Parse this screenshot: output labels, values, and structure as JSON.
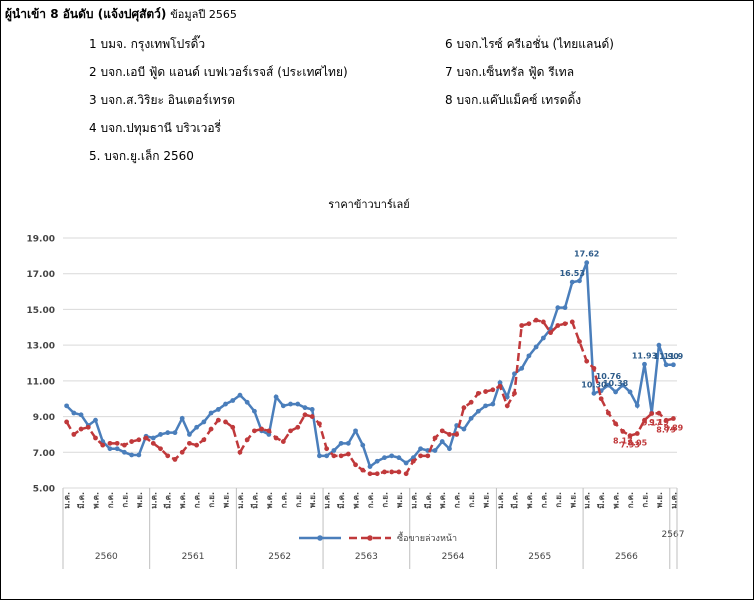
{
  "header": {
    "title": "ผู้นำเข้า 8 อันดับ (แจ้งปศุสัตว์)",
    "note": "ข้อมูลปี 2565"
  },
  "importers": [
    "1 บมจ. กรุงเทพโปรดิ๊ว",
    "2 บจก.เอบี ฟู้ด แอนด์ เบฟเวอร์เรจส์ (ประเทศไทย)",
    "3 บจก.ส.วิริยะ อินเตอร์เทรด",
    "4 บจก.ปทุมธานี บริวเวอรี่",
    "5. บจก.ยู.เล็ก 2560",
    "6 บจก.ไรซ์ ครีเอชั่น (ไทยแลนด์)",
    "7 บจก.เซ็นทรัล ฟู้ด รีเทล",
    "8 บจก.แค๊ปแม็คซ์ เทรดดิ้ง"
  ],
  "chart_data": {
    "type": "line",
    "title": "ราคาข้าวบาร์เลย์",
    "categories": [
      "ม.ค.",
      null,
      "มี.ค.",
      null,
      "พ.ค.",
      null,
      "ก.ค.",
      null,
      "ก.ย.",
      null,
      "พ.ย.",
      null,
      "ม.ค.",
      null,
      "มี.ค.",
      null,
      "พ.ค.",
      null,
      "ก.ค.",
      null,
      "ก.ย.",
      null,
      "พ.ย.",
      null,
      "ม.ค.",
      null,
      "มี.ค.",
      null,
      "พ.ค.",
      null,
      "ก.ค.",
      null,
      "ก.ย.",
      null,
      "พ.ย.",
      null,
      "ม.ค.",
      null,
      "มี.ค.",
      null,
      "พ.ค.",
      null,
      "ก.ค.",
      null,
      "ก.ย.",
      null,
      "พ.ย.",
      null,
      "ม.ค.",
      null,
      "มี.ค.",
      null,
      "พ.ค.",
      null,
      "ก.ค.",
      null,
      "ก.ย.",
      null,
      "พ.ย.",
      null,
      "ม.ค.",
      null,
      "มี.ค.",
      null,
      "พ.ค.",
      null,
      "ก.ค.",
      null,
      "ก.ย.",
      null,
      "พ.ย.",
      null,
      "ม.ค.",
      null,
      "มี.ค.",
      null,
      "พ.ค.",
      null,
      "ก.ค.",
      null,
      "ก.ย.",
      null,
      "พ.ย.",
      null,
      "ม.ค."
    ],
    "year_groups": [
      "2560",
      "2561",
      "2562",
      "2563",
      "2564",
      "2565",
      "2566",
      "2567"
    ],
    "ylim": [
      5,
      19
    ],
    "yticks": [
      {
        "value": 5,
        "label": "5.00"
      },
      {
        "value": 7,
        "label": "7.00"
      },
      {
        "value": 9,
        "label": "9.00"
      },
      {
        "value": 11,
        "label": "11.00"
      },
      {
        "value": 13,
        "label": "13.00"
      },
      {
        "value": 15,
        "label": "15.00"
      },
      {
        "value": 17,
        "label": "17.00"
      },
      {
        "value": 19,
        "label": "19.00"
      }
    ],
    "grid": true,
    "series": [
      {
        "color": "#4a7ebb",
        "dashed": false,
        "values": [
          9.6,
          9.2,
          9.1,
          8.5,
          8.8,
          7.6,
          7.2,
          7.2,
          7.0,
          6.85,
          6.85,
          7.9,
          7.8,
          8.0,
          8.1,
          8.1,
          8.9,
          8.0,
          8.4,
          8.7,
          9.2,
          9.4,
          9.7,
          9.9,
          10.2,
          9.8,
          9.3,
          8.2,
          8.0,
          10.1,
          9.6,
          9.7,
          9.7,
          9.5,
          9.4,
          6.8,
          6.8,
          7.1,
          7.5,
          7.5,
          8.2,
          7.4,
          6.2,
          6.5,
          6.7,
          6.8,
          6.7,
          6.4,
          6.7,
          7.2,
          7.1,
          7.1,
          7.6,
          7.2,
          8.5,
          8.3,
          8.9,
          9.3,
          9.6,
          9.7,
          10.9,
          10.1,
          11.4,
          11.7,
          12.4,
          12.9,
          13.4,
          13.9,
          15.1,
          15.1,
          16.53,
          16.6,
          17.62,
          10.3,
          10.45,
          10.76,
          10.38,
          10.76,
          10.38,
          9.62,
          11.93,
          9.2,
          13.0,
          11.9,
          11.9
        ],
        "value_labels": [
          null,
          null,
          null,
          null,
          null,
          null,
          null,
          null,
          null,
          null,
          null,
          null,
          null,
          null,
          null,
          null,
          null,
          null,
          null,
          null,
          null,
          null,
          null,
          null,
          null,
          null,
          null,
          null,
          null,
          null,
          null,
          null,
          null,
          null,
          null,
          null,
          null,
          null,
          null,
          null,
          null,
          null,
          null,
          null,
          null,
          null,
          null,
          null,
          null,
          null,
          null,
          null,
          null,
          null,
          null,
          null,
          null,
          null,
          null,
          null,
          null,
          null,
          null,
          null,
          null,
          null,
          null,
          null,
          null,
          null,
          "16.53",
          null,
          "17.62",
          "10.30",
          null,
          "10.76",
          "10.38",
          null,
          null,
          null,
          "11.93",
          null,
          null,
          "11.90",
          "11.9"
        ]
      },
      {
        "name": "ซื้อขายล่วงหน้า",
        "color": "#c0393b",
        "dashed": true,
        "values": [
          8.7,
          8.0,
          8.3,
          8.4,
          7.8,
          7.4,
          7.5,
          7.5,
          7.4,
          7.6,
          7.7,
          7.8,
          7.5,
          7.2,
          6.8,
          6.6,
          7.0,
          7.5,
          7.4,
          7.7,
          8.3,
          8.8,
          8.7,
          8.4,
          7.0,
          7.7,
          8.2,
          8.3,
          8.2,
          7.8,
          7.6,
          8.2,
          8.4,
          9.1,
          9.0,
          8.6,
          7.2,
          6.8,
          6.8,
          6.9,
          6.3,
          6.0,
          5.8,
          5.8,
          5.9,
          5.9,
          5.9,
          5.8,
          6.5,
          6.8,
          6.8,
          7.8,
          8.2,
          8.0,
          8.0,
          9.5,
          9.8,
          10.3,
          10.4,
          10.5,
          10.7,
          9.6,
          10.3,
          14.1,
          14.2,
          14.4,
          14.3,
          13.7,
          14.1,
          14.2,
          14.3,
          13.2,
          12.1,
          11.7,
          10.0,
          9.2,
          8.6,
          8.17,
          7.93,
          8.05,
          8.8,
          9.17,
          9.19,
          8.79,
          8.89
        ],
        "value_labels": [
          null,
          null,
          null,
          null,
          null,
          null,
          null,
          null,
          null,
          null,
          null,
          null,
          null,
          null,
          null,
          null,
          null,
          null,
          null,
          null,
          null,
          null,
          null,
          null,
          null,
          null,
          null,
          null,
          null,
          null,
          null,
          null,
          null,
          null,
          null,
          null,
          null,
          null,
          null,
          null,
          null,
          null,
          null,
          null,
          null,
          null,
          null,
          null,
          null,
          null,
          null,
          null,
          null,
          null,
          null,
          null,
          null,
          null,
          null,
          null,
          null,
          null,
          null,
          null,
          null,
          null,
          null,
          null,
          null,
          null,
          null,
          null,
          null,
          null,
          null,
          null,
          null,
          "8.17",
          "7.93",
          "8.05",
          null,
          "9.17",
          "9.19",
          "8.79",
          "8.89"
        ]
      }
    ]
  }
}
